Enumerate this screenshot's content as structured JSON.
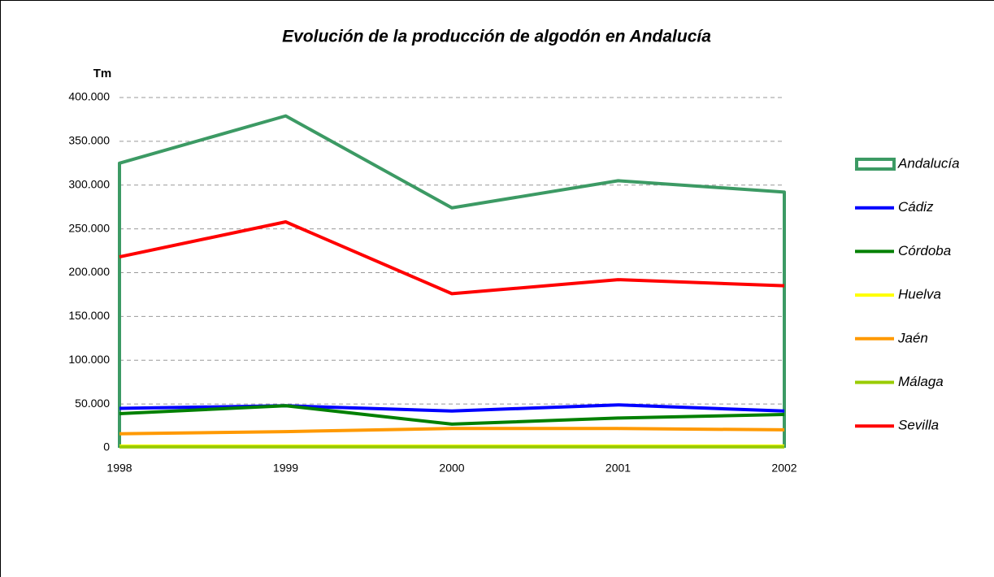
{
  "chart_data": {
    "type": "line",
    "title": "Evolución de la producción de algodón en Andalucía",
    "y_label": "Tm",
    "categories": [
      "1998",
      "1999",
      "2000",
      "2001",
      "2002"
    ],
    "ylim": [
      0,
      400000
    ],
    "yticks": [
      0,
      {
        "value": 50000,
        "label": "50.000"
      },
      {
        "value": 100000,
        "label": "100.000"
      },
      {
        "value": 150000,
        "label": "150.000"
      },
      {
        "value": 200000,
        "label": "200.000"
      },
      {
        "value": 250000,
        "label": "250.000"
      },
      {
        "value": 300000,
        "label": "300.000"
      },
      {
        "value": 350000,
        "label": "350.000"
      },
      {
        "value": 400000,
        "label": "400.000"
      }
    ],
    "grid": true,
    "legend": "right",
    "series": [
      {
        "name": "Andalucía",
        "color": "#3c9a64",
        "type": "area",
        "values": [
          325000,
          379000,
          274000,
          305000,
          292000
        ]
      },
      {
        "name": "Cádiz",
        "color": "#0000ff",
        "values": [
          45000,
          48000,
          42000,
          49000,
          42000
        ]
      },
      {
        "name": "Córdoba",
        "color": "#008000",
        "values": [
          39000,
          48000,
          27000,
          34000,
          38000
        ]
      },
      {
        "name": "Huelva",
        "color": "#ffff00",
        "values": [
          2000,
          2000,
          2000,
          2000,
          2000
        ]
      },
      {
        "name": "Jaén",
        "color": "#ff9900",
        "values": [
          16000,
          18500,
          22000,
          22000,
          20500
        ]
      },
      {
        "name": "Málaga",
        "color": "#99cc00",
        "values": [
          1000,
          1000,
          1000,
          1000,
          1000
        ]
      },
      {
        "name": "Sevilla",
        "color": "#ff0000",
        "values": [
          218000,
          258000,
          176000,
          192000,
          185000
        ]
      }
    ]
  }
}
